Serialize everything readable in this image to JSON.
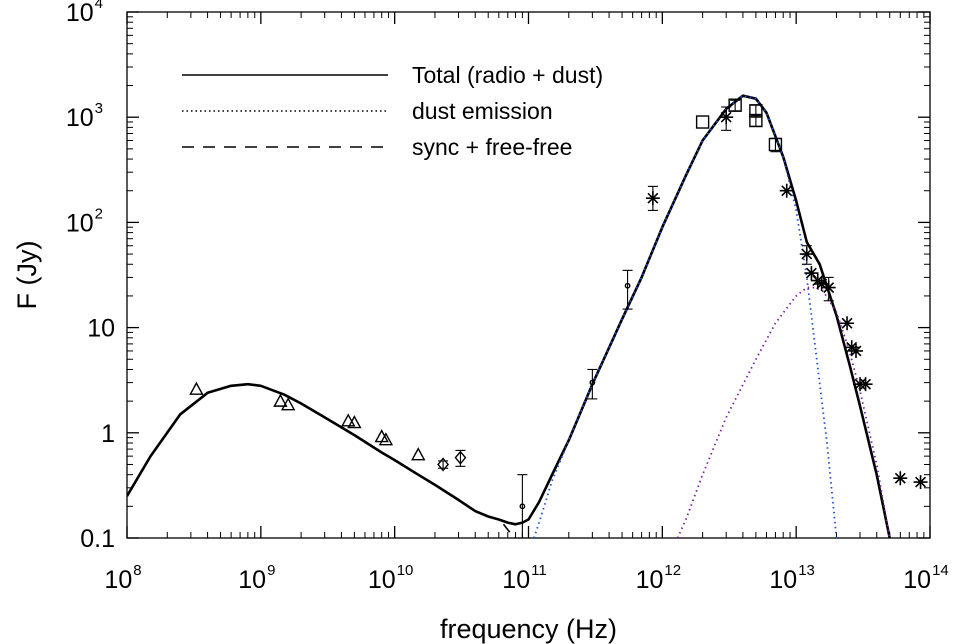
{
  "chart_data": {
    "type": "scatter",
    "x_scale": "log",
    "y_scale": "log",
    "xlim": [
      100000000.0,
      100000000000000.0
    ],
    "ylim": [
      0.1,
      10000
    ],
    "xlabel": "frequency (Hz)",
    "ylabel": "F (Jy)",
    "grid": false,
    "legend_position": "top-left",
    "x_ticks": [
      {
        "value": 100000000.0,
        "base": "10",
        "exp": "8"
      },
      {
        "value": 1000000000.0,
        "base": "10",
        "exp": "9"
      },
      {
        "value": 10000000000.0,
        "base": "10",
        "exp": "10"
      },
      {
        "value": 100000000000.0,
        "base": "10",
        "exp": "11"
      },
      {
        "value": 1000000000000.0,
        "base": "10",
        "exp": "12"
      },
      {
        "value": 10000000000000.0,
        "base": "10",
        "exp": "13"
      },
      {
        "value": 100000000000000.0,
        "base": "10",
        "exp": "14"
      }
    ],
    "y_ticks": [
      {
        "value": 0.1,
        "base": "0.1",
        "exp": ""
      },
      {
        "value": 1,
        "base": "1",
        "exp": ""
      },
      {
        "value": 10,
        "base": "10",
        "exp": ""
      },
      {
        "value": 100,
        "base": "10",
        "exp": "2"
      },
      {
        "value": 1000,
        "base": "10",
        "exp": "3"
      },
      {
        "value": 10000,
        "base": "10",
        "exp": "4"
      }
    ],
    "legend": [
      {
        "label": "Total (radio + dust)",
        "style": "solid"
      },
      {
        "label": "dust emission",
        "style": "dotted"
      },
      {
        "label": "sync + free-free",
        "style": "dashed"
      }
    ],
    "curves": [
      {
        "style": "solid",
        "color": "#000000",
        "x": [
          100000000.0,
          150000000.0,
          250000000.0,
          400000000.0,
          600000000.0,
          800000000.0,
          1000000000.0,
          1500000000.0,
          2000000000.0,
          3000000000.0,
          5000000000.0,
          8000000000.0,
          10000000000.0,
          15000000000.0,
          20000000000.0,
          30000000000.0,
          40000000000.0,
          50000000000.0,
          60000000000.0,
          70000000000.0,
          80000000000.0,
          90000000000.0,
          100000000000.0,
          120000000000.0,
          150000000000.0,
          200000000000.0,
          300000000000.0,
          500000000000.0,
          700000000000.0,
          1000000000000.0,
          1500000000000.0,
          2000000000000.0,
          3000000000000.0,
          4000000000000.0,
          5000000000000.0,
          6000000000000.0,
          8000000000000.0,
          10000000000000.0,
          12000000000000.0,
          15000000000000.0,
          20000000000000.0,
          25000000000000.0,
          30000000000000.0,
          40000000000000.0,
          50000000000000.0
        ],
        "y": [
          0.25,
          0.6,
          1.5,
          2.4,
          2.8,
          2.9,
          2.8,
          2.3,
          1.9,
          1.4,
          0.95,
          0.65,
          0.55,
          0.4,
          0.32,
          0.23,
          0.18,
          0.16,
          0.15,
          0.14,
          0.135,
          0.14,
          0.15,
          0.22,
          0.4,
          0.85,
          2.9,
          12,
          30,
          90,
          280,
          600,
          1200,
          1600,
          1500,
          1100,
          420,
          160,
          65,
          40,
          13,
          4.5,
          1.8,
          0.4,
          0.1
        ]
      },
      {
        "style": "dotted",
        "color": "#1f4fd0",
        "x": [
          110000000000.0,
          120000000000.0,
          150000000000.0,
          200000000000.0,
          300000000000.0,
          500000000000.0,
          700000000000.0,
          1000000000000.0,
          1500000000000.0,
          2000000000000.0,
          3000000000000.0,
          4000000000000.0,
          5000000000000.0,
          6000000000000.0,
          8000000000000.0,
          10000000000000.0,
          12000000000000.0,
          14000000000000.0,
          17000000000000.0,
          20000000000000.0
        ],
        "y": [
          0.1,
          0.14,
          0.35,
          0.85,
          2.9,
          12,
          30,
          90,
          280,
          600,
          1200,
          1600,
          1500,
          1100,
          420,
          130,
          30,
          6,
          0.8,
          0.1
        ]
      },
      {
        "style": "dotted",
        "color": "#7a1fa0",
        "x": [
          1300000000000.0,
          1500000000000.0,
          2000000000000.0,
          3000000000000.0,
          5000000000000.0,
          7000000000000.0,
          10000000000000.0,
          12000000000000.0,
          14000000000000.0,
          16000000000000.0,
          20000000000000.0,
          25000000000000.0,
          30000000000000.0,
          40000000000000.0,
          50000000000000.0
        ],
        "y": [
          0.1,
          0.15,
          0.4,
          1.4,
          5,
          11,
          20,
          24,
          24,
          22,
          14,
          6,
          2.5,
          0.5,
          0.1
        ]
      },
      {
        "style": "dashed",
        "color": "#000000",
        "x": [
          65000000000.0,
          70000000000.0,
          75000000000.0,
          80000000000.0,
          85000000000.0
        ],
        "y": [
          0.135,
          0.12,
          0.108,
          0.098,
          0.09
        ]
      }
    ],
    "series": [
      {
        "marker": "triangle",
        "points": [
          {
            "x": 330000000.0,
            "y": 2.6
          },
          {
            "x": 1400000000.0,
            "y": 2.0
          },
          {
            "x": 1600000000.0,
            "y": 1.85
          },
          {
            "x": 4500000000.0,
            "y": 1.3
          },
          {
            "x": 5000000000.0,
            "y": 1.25
          },
          {
            "x": 8000000000.0,
            "y": 0.92
          },
          {
            "x": 8600000000.0,
            "y": 0.86
          },
          {
            "x": 15000000000.0,
            "y": 0.62
          }
        ]
      },
      {
        "marker": "diamond",
        "points": [
          {
            "x": 23000000000.0,
            "y": 0.5,
            "err": 0.04
          },
          {
            "x": 31000000000.0,
            "y": 0.58,
            "err": 0.1
          }
        ]
      },
      {
        "marker": "circle",
        "points": [
          {
            "x": 90000000000.0,
            "y": 0.2,
            "lo": 0.06,
            "hi": 0.4
          },
          {
            "x": 300000000000.0,
            "y": 3.0,
            "lo": 2.1,
            "hi": 4.0
          },
          {
            "x": 550000000000.0,
            "y": 25,
            "lo": 15,
            "hi": 35
          }
        ]
      },
      {
        "marker": "asterisk",
        "points": [
          {
            "x": 850000000000.0,
            "y": 170,
            "lo": 130,
            "hi": 220
          },
          {
            "x": 3000000000000.0,
            "y": 1000,
            "lo": 750,
            "hi": 1250
          },
          {
            "x": 8500000000000.0,
            "y": 200
          },
          {
            "x": 12000000000000.0,
            "y": 50,
            "lo": 40,
            "hi": 60
          },
          {
            "x": 13000000000000.0,
            "y": 33
          },
          {
            "x": 14500000000000.0,
            "y": 28
          },
          {
            "x": 15500000000000.0,
            "y": 26
          },
          {
            "x": 17500000000000.0,
            "y": 24,
            "lo": 18,
            "hi": 30
          },
          {
            "x": 24000000000000.0,
            "y": 11
          },
          {
            "x": 26000000000000.0,
            "y": 6.5
          },
          {
            "x": 28000000000000.0,
            "y": 6
          },
          {
            "x": 30000000000000.0,
            "y": 2.9
          },
          {
            "x": 33000000000000.0,
            "y": 2.9
          },
          {
            "x": 60000000000000.0,
            "y": 0.37
          },
          {
            "x": 85000000000000.0,
            "y": 0.34
          }
        ]
      },
      {
        "marker": "square",
        "points": [
          {
            "x": 2000000000000.0,
            "y": 900
          },
          {
            "x": 3500000000000.0,
            "y": 1300,
            "lo": 1150,
            "hi": 1450
          },
          {
            "x": 5000000000000.0,
            "y": 1150,
            "lo": 1000,
            "hi": 1300
          },
          {
            "x": 5000000000000.0,
            "y": 930,
            "lo": 820,
            "hi": 1040
          },
          {
            "x": 7000000000000.0,
            "y": 550,
            "lo": 470,
            "hi": 630
          }
        ]
      }
    ]
  }
}
